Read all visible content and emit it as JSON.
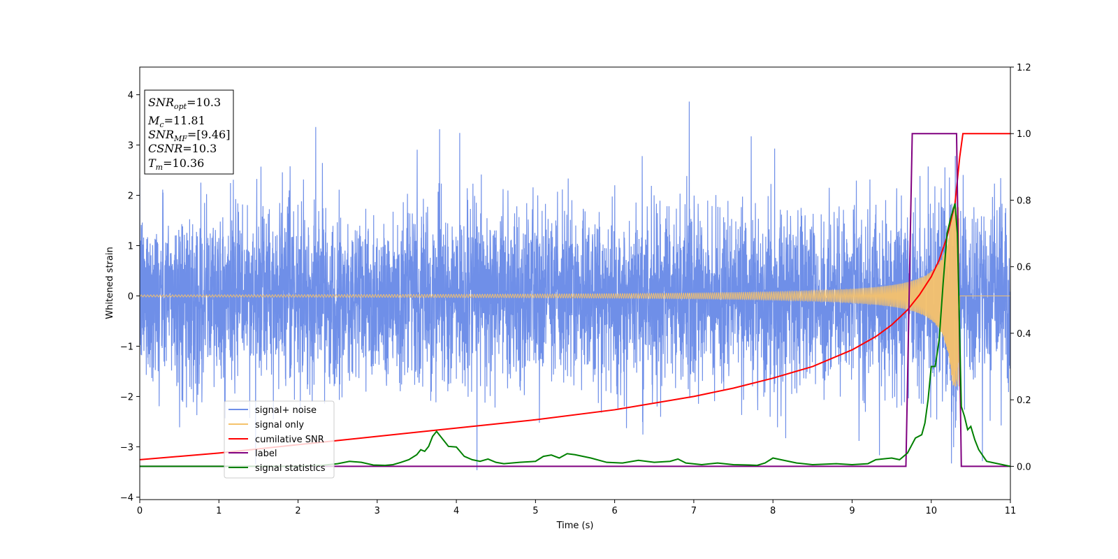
{
  "chart_data": {
    "type": "line",
    "xlabel": "Time (s)",
    "ylabel": "Whitened strain",
    "xlim": [
      0,
      11
    ],
    "ylim": [
      -4.05,
      4.55
    ],
    "y2lim": [
      -0.1,
      1.2
    ],
    "x_ticks": [
      0,
      1,
      2,
      3,
      4,
      5,
      6,
      7,
      8,
      9,
      10,
      11
    ],
    "y_ticks": [
      -4,
      -3,
      -2,
      -1,
      0,
      1,
      2,
      3,
      4
    ],
    "y2_ticks": [
      "0.0",
      "0.2",
      "0.4",
      "0.6",
      "0.8",
      "1.0",
      "1.2"
    ],
    "x_tick_labels": [
      "0",
      "1",
      "2",
      "3",
      "4",
      "5",
      "6",
      "7",
      "8",
      "9",
      "10",
      "11"
    ],
    "y_tick_labels": [
      "−4",
      "−3",
      "−2",
      "−1",
      "0",
      "1",
      "2",
      "3",
      "4"
    ],
    "legend_position": "lower-left",
    "colors": {
      "noise": "#6f8fe8",
      "signal": "#f5c26b",
      "cumsnr": "#ff0000",
      "label": "#800080",
      "stats": "#008000"
    },
    "annotation": {
      "snr_opt": "10.3",
      "mc": "11.81",
      "snr_mf": "[9.46]",
      "csnr": "10.3",
      "tm": "10.36"
    },
    "series": [
      {
        "name": "signal+ noise",
        "axis": "left",
        "style": "noise",
        "sigma": 0.85
      },
      {
        "name": "signal only",
        "axis": "left",
        "style": "chirp",
        "t_merge": 10.36,
        "amp_max": 1.8
      },
      {
        "name": "cumilative SNR",
        "axis": "right",
        "points": [
          [
            0,
            0.02
          ],
          [
            1,
            0.04
          ],
          [
            2,
            0.065
          ],
          [
            3,
            0.09
          ],
          [
            4,
            0.115
          ],
          [
            5,
            0.14
          ],
          [
            6,
            0.17
          ],
          [
            7,
            0.21
          ],
          [
            7.5,
            0.235
          ],
          [
            8,
            0.265
          ],
          [
            8.5,
            0.3
          ],
          [
            9,
            0.35
          ],
          [
            9.3,
            0.39
          ],
          [
            9.5,
            0.425
          ],
          [
            9.7,
            0.47
          ],
          [
            9.85,
            0.515
          ],
          [
            10,
            0.57
          ],
          [
            10.1,
            0.62
          ],
          [
            10.2,
            0.69
          ],
          [
            10.3,
            0.79
          ],
          [
            10.36,
            0.93
          ],
          [
            10.4,
            1.0
          ],
          [
            11,
            1.0
          ]
        ]
      },
      {
        "name": "label",
        "axis": "right",
        "points": [
          [
            0,
            0
          ],
          [
            9.68,
            0
          ],
          [
            9.76,
            1
          ],
          [
            10.32,
            1
          ],
          [
            10.38,
            0
          ],
          [
            11,
            0
          ]
        ]
      },
      {
        "name": "signal statistics",
        "axis": "right",
        "points": [
          [
            0,
            0
          ],
          [
            0.5,
            0.0
          ],
          [
            1,
            0
          ],
          [
            1.5,
            0
          ],
          [
            2,
            0
          ],
          [
            2.3,
            0.003
          ],
          [
            2.5,
            0.008
          ],
          [
            2.65,
            0.015
          ],
          [
            2.8,
            0.012
          ],
          [
            2.95,
            0.004
          ],
          [
            3.1,
            0.003
          ],
          [
            3.2,
            0.005
          ],
          [
            3.3,
            0.012
          ],
          [
            3.4,
            0.02
          ],
          [
            3.5,
            0.035
          ],
          [
            3.55,
            0.05
          ],
          [
            3.6,
            0.045
          ],
          [
            3.65,
            0.06
          ],
          [
            3.7,
            0.09
          ],
          [
            3.75,
            0.105
          ],
          [
            3.8,
            0.09
          ],
          [
            3.9,
            0.06
          ],
          [
            4.0,
            0.058
          ],
          [
            4.1,
            0.03
          ],
          [
            4.2,
            0.02
          ],
          [
            4.3,
            0.015
          ],
          [
            4.4,
            0.022
          ],
          [
            4.5,
            0.012
          ],
          [
            4.6,
            0.008
          ],
          [
            4.8,
            0.012
          ],
          [
            5.0,
            0.015
          ],
          [
            5.1,
            0.03
          ],
          [
            5.2,
            0.034
          ],
          [
            5.3,
            0.025
          ],
          [
            5.4,
            0.038
          ],
          [
            5.5,
            0.035
          ],
          [
            5.7,
            0.025
          ],
          [
            5.9,
            0.012
          ],
          [
            6.1,
            0.01
          ],
          [
            6.3,
            0.018
          ],
          [
            6.5,
            0.012
          ],
          [
            6.7,
            0.015
          ],
          [
            6.8,
            0.022
          ],
          [
            6.9,
            0.01
          ],
          [
            7.1,
            0.005
          ],
          [
            7.3,
            0.01
          ],
          [
            7.5,
            0.005
          ],
          [
            7.7,
            0.004
          ],
          [
            7.8,
            0.003
          ],
          [
            7.9,
            0.01
          ],
          [
            8.0,
            0.025
          ],
          [
            8.1,
            0.02
          ],
          [
            8.3,
            0.01
          ],
          [
            8.5,
            0.005
          ],
          [
            8.8,
            0.008
          ],
          [
            9.0,
            0.005
          ],
          [
            9.2,
            0.008
          ],
          [
            9.3,
            0.02
          ],
          [
            9.5,
            0.025
          ],
          [
            9.6,
            0.02
          ],
          [
            9.7,
            0.04
          ],
          [
            9.8,
            0.085
          ],
          [
            9.88,
            0.095
          ],
          [
            9.92,
            0.13
          ],
          [
            9.96,
            0.2
          ],
          [
            10.0,
            0.3
          ],
          [
            10.05,
            0.3
          ],
          [
            10.1,
            0.38
          ],
          [
            10.15,
            0.55
          ],
          [
            10.2,
            0.7
          ],
          [
            10.25,
            0.75
          ],
          [
            10.3,
            0.79
          ],
          [
            10.33,
            0.7
          ],
          [
            10.38,
            0.18
          ],
          [
            10.42,
            0.15
          ],
          [
            10.46,
            0.11
          ],
          [
            10.5,
            0.12
          ],
          [
            10.55,
            0.08
          ],
          [
            10.6,
            0.05
          ],
          [
            10.7,
            0.015
          ],
          [
            10.8,
            0.01
          ],
          [
            11,
            0
          ]
        ]
      }
    ]
  }
}
